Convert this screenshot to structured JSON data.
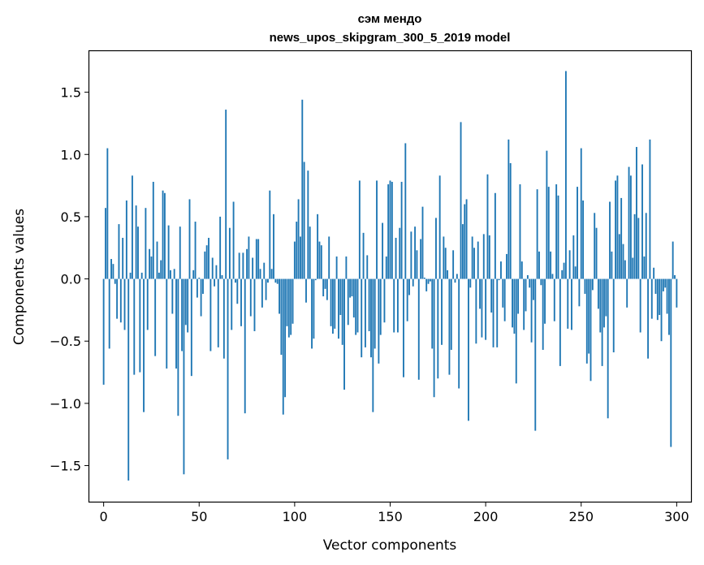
{
  "chart_data": {
    "type": "bar",
    "title_line1": "сэм мендо",
    "title_line2": "news_upos_skipgram_300_5_2019 model",
    "xlabel": "Vector components",
    "ylabel": "Components values",
    "xlim": [
      -7.5,
      307.5
    ],
    "ylim": [
      -1.79,
      1.83
    ],
    "xticks": [
      0,
      50,
      100,
      150,
      200,
      250,
      300
    ],
    "xtick_labels": [
      "0",
      "50",
      "100",
      "150",
      "200",
      "250",
      "300"
    ],
    "yticks": [
      -1.5,
      -1.0,
      -0.5,
      0.0,
      0.5,
      1.0,
      1.5
    ],
    "ytick_labels": [
      "−1.5",
      "−1.0",
      "−0.5",
      "0.0",
      "0.5",
      "1.0",
      "1.5"
    ],
    "grid": false,
    "bar_color": "#1f77b4",
    "values": [
      -0.85,
      0.57,
      1.05,
      -0.56,
      0.16,
      0.12,
      -0.04,
      -0.32,
      0.44,
      -0.35,
      0.33,
      -0.41,
      0.63,
      -1.62,
      0.05,
      0.83,
      -0.77,
      0.59,
      0.42,
      -0.75,
      0.05,
      -1.07,
      0.57,
      -0.41,
      0.24,
      0.18,
      0.78,
      -0.62,
      0.3,
      0.05,
      0.15,
      0.71,
      0.69,
      -0.72,
      0.43,
      0.07,
      -0.28,
      0.08,
      -0.72,
      -1.1,
      0.42,
      -0.58,
      -1.57,
      -0.37,
      -0.43,
      0.64,
      -0.78,
      0.07,
      0.46,
      -0.15,
      0.01,
      -0.3,
      -0.12,
      0.22,
      0.27,
      0.33,
      -0.58,
      0.17,
      -0.06,
      0.11,
      -0.55,
      0.5,
      0.03,
      -0.64,
      1.36,
      -1.45,
      0.41,
      -0.41,
      0.62,
      -0.03,
      -0.2,
      0.21,
      -0.38,
      0.21,
      -1.08,
      0.24,
      0.34,
      -0.3,
      0.17,
      -0.42,
      0.32,
      0.32,
      0.08,
      -0.23,
      0.13,
      -0.17,
      -0.03,
      0.71,
      0.08,
      0.52,
      -0.03,
      -0.04,
      -0.28,
      -0.61,
      -1.09,
      -0.95,
      -0.38,
      -0.47,
      -0.45,
      -0.36,
      0.3,
      0.46,
      0.64,
      0.34,
      1.44,
      0.94,
      -0.19,
      0.87,
      0.42,
      -0.56,
      -0.48,
      -0.01,
      0.52,
      0.3,
      0.27,
      -0.14,
      -0.08,
      -0.17,
      0.34,
      -0.38,
      -0.44,
      -0.4,
      0.18,
      -0.48,
      -0.29,
      -0.53,
      -0.89,
      0.18,
      -0.37,
      -0.15,
      -0.14,
      -0.31,
      -0.45,
      -0.43,
      0.79,
      -0.63,
      0.37,
      -0.55,
      0.19,
      -0.42,
      -0.63,
      -1.07,
      -0.56,
      0.79,
      -0.68,
      -0.45,
      0.45,
      -0.35,
      0.18,
      0.76,
      0.79,
      0.78,
      -0.43,
      0.33,
      -0.43,
      0.41,
      0.78,
      -0.79,
      1.09,
      -0.34,
      -0.13,
      0.38,
      -0.06,
      0.42,
      0.23,
      -0.81,
      0.32,
      0.58,
      0.01,
      -0.1,
      -0.04,
      -0.02,
      -0.56,
      -0.95,
      0.49,
      -0.8,
      0.83,
      -0.53,
      0.34,
      0.25,
      0.07,
      -0.77,
      -0.57,
      0.23,
      -0.03,
      0.04,
      -0.88,
      1.26,
      0.44,
      0.6,
      0.64,
      -1.14,
      -0.07,
      0.34,
      0.25,
      -0.52,
      0.3,
      -0.24,
      -0.47,
      0.36,
      -0.49,
      0.84,
      0.35,
      -0.27,
      -0.55,
      0.69,
      -0.55,
      -0.01,
      0.14,
      -0.23,
      -0.34,
      0.2,
      1.12,
      0.93,
      -0.39,
      -0.44,
      -0.84,
      -0.28,
      0.76,
      0.14,
      -0.41,
      -0.26,
      0.03,
      -0.07,
      -0.51,
      -0.17,
      -1.22,
      0.72,
      0.22,
      -0.05,
      -0.57,
      -0.36,
      1.03,
      0.74,
      0.22,
      0.04,
      -0.34,
      0.76,
      0.67,
      -0.7,
      0.07,
      0.13,
      1.67,
      -0.4,
      0.23,
      -0.41,
      0.35,
      0.1,
      0.74,
      -0.22,
      1.05,
      0.63,
      -0.12,
      -0.68,
      -0.6,
      -0.82,
      -0.09,
      0.53,
      0.41,
      -0.24,
      -0.43,
      -0.7,
      -0.39,
      -0.3,
      -1.12,
      0.62,
      0.22,
      -0.59,
      0.79,
      0.83,
      0.36,
      0.65,
      0.28,
      0.15,
      -0.23,
      0.9,
      0.83,
      0.17,
      0.52,
      1.06,
      0.49,
      -0.43,
      0.92,
      0.18,
      0.53,
      -0.64,
      1.12,
      -0.32,
      0.09,
      -0.12,
      -0.33,
      -0.29,
      -0.5,
      -0.1,
      -0.07,
      -0.28,
      -0.45,
      -1.35,
      0.3,
      0.03,
      -0.23
    ]
  }
}
